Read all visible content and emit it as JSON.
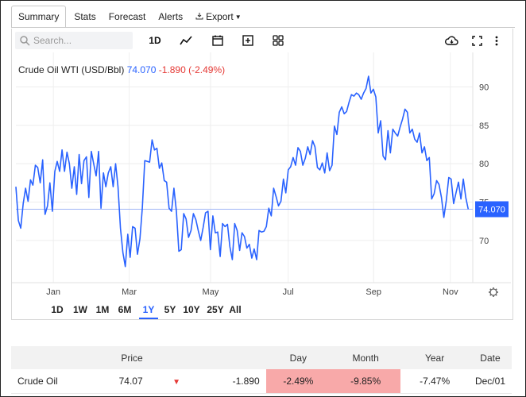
{
  "tabs": [
    {
      "label": "Summary",
      "active": true
    },
    {
      "label": "Stats"
    },
    {
      "label": "Forecast"
    },
    {
      "label": "Alerts"
    },
    {
      "label": "Export"
    }
  ],
  "toolbar": {
    "search_placeholder": "Search...",
    "interval_label": "1D",
    "icons": [
      "search-icon",
      "line-chart-icon",
      "calendar-icon",
      "add-compare-icon",
      "indicators-icon",
      "download-icon",
      "fullscreen-icon",
      "more-icon"
    ]
  },
  "legend": {
    "symbol": "Crude Oil WTI (USD/Bbl)",
    "value": "74.070",
    "change": "-1.890 (-2.49%)"
  },
  "range_buttons": [
    {
      "label": "1D"
    },
    {
      "label": "1W"
    },
    {
      "label": "1M"
    },
    {
      "label": "6M"
    },
    {
      "label": "1Y",
      "active": true
    },
    {
      "label": "5Y"
    },
    {
      "label": "10Y"
    },
    {
      "label": "25Y"
    },
    {
      "label": "All"
    }
  ],
  "colors": {
    "line": "#2962ff",
    "negative": "#e53935",
    "negative_bg": "#f8a9a9",
    "grid": "#eeeeee"
  },
  "chart_data": {
    "type": "line",
    "title": "",
    "ylim": [
      64.5,
      94.5
    ],
    "yticks": [
      70,
      75,
      80,
      85,
      90
    ],
    "xticks": [
      {
        "label": "Jan",
        "pos": 0.082
      },
      {
        "label": "Mar",
        "pos": 0.248
      },
      {
        "label": "May",
        "pos": 0.426
      },
      {
        "label": "Jul",
        "pos": 0.596
      },
      {
        "label": "Sep",
        "pos": 0.783
      },
      {
        "label": "Nov",
        "pos": 0.951
      }
    ],
    "last_value": "74.070",
    "reference_level": 74.07,
    "series": [
      {
        "values": [
          77.0,
          72.6,
          71.6,
          74.8,
          76.8,
          75.1,
          77.9,
          77.2,
          79.8,
          79.5,
          77.5,
          80.5,
          73.4,
          74.5,
          77.5,
          73.8,
          79.0,
          80.3,
          79.0,
          81.8,
          79.0,
          81.5,
          80.0,
          76.8,
          79.6,
          76.0,
          81.2,
          77.4,
          80.4,
          80.9,
          75.6,
          81.6,
          80.0,
          78.4,
          81.6,
          74.2,
          78.8,
          77.0,
          78.8,
          79.6,
          77.0,
          80.0,
          77.0,
          71.6,
          68.4,
          66.6,
          70.8,
          67.8,
          71.8,
          71.6,
          68.2,
          70.2,
          74.2,
          80.4,
          80.3,
          80.2,
          83.1,
          81.8,
          82.0,
          79.4,
          80.1,
          77.8,
          77.6,
          74.2,
          73.8,
          76.8,
          73.8,
          68.6,
          68.8,
          73.5,
          72.8,
          70.4,
          71.3,
          73.5,
          72.7,
          71.3,
          70.0,
          71.7,
          73.6,
          73.8,
          68.8,
          73.2,
          71.0,
          71.1,
          67.9,
          72.2,
          71.8,
          72.1,
          69.2,
          67.5,
          72.2,
          71.3,
          68.7,
          71.0,
          70.5,
          69.0,
          69.5,
          67.7,
          68.9,
          67.5,
          71.3,
          71.1,
          71.2,
          71.8,
          74.2,
          73.2,
          76.8,
          75.7,
          74.5,
          75.1,
          78.0,
          76.2,
          79.2,
          79.6,
          80.8,
          79.8,
          82.1,
          81.6,
          79.8,
          80.7,
          82.2,
          81.2,
          83.0,
          82.2,
          79.5,
          79.2,
          80.1,
          78.8,
          81.4,
          79.1,
          79.8,
          84.9,
          83.8,
          86.7,
          87.4,
          86.5,
          86.8,
          88.0,
          89.0,
          88.8,
          89.2,
          89.0,
          88.4,
          89.2,
          89.8,
          91.4,
          89.2,
          89.7,
          88.7,
          84.0,
          85.6,
          81.0,
          80.5,
          84.3,
          81.4,
          84.5,
          84.0,
          83.6,
          84.8,
          85.8,
          87.1,
          86.7,
          84.0,
          84.5,
          83.2,
          82.8,
          84.0,
          81.4,
          82.2,
          80.4,
          80.8,
          75.4,
          76.1,
          77.8,
          77.3,
          75.6,
          73.0,
          75.2,
          78.2,
          78.0,
          74.8,
          76.2,
          77.6,
          75.4,
          78.0,
          75.6,
          74.07
        ]
      }
    ]
  },
  "quote_table": {
    "headers": [
      "",
      "Price",
      "",
      "",
      "Day",
      "Month",
      "Year",
      "Date"
    ],
    "rows": [
      {
        "name": "Crude Oil",
        "price": "74.07",
        "direction": "down",
        "change": "-1.890",
        "day": "-2.49%",
        "month": "-9.85%",
        "year": "-7.47%",
        "date": "Dec/01"
      }
    ]
  }
}
